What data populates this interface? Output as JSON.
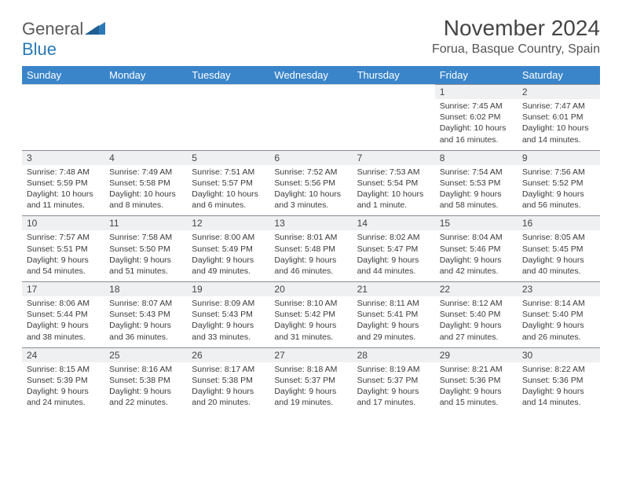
{
  "logo": {
    "part1": "General",
    "part2": "Blue"
  },
  "title": "November 2024",
  "location": "Forua, Basque Country, Spain",
  "colors": {
    "header_bg": "#3a85c9",
    "header_text": "#ffffff",
    "daynum_bg": "#eef0f2",
    "day_border": "#8a8f96",
    "body_text": "#3a3a3a",
    "logo_gray": "#5a5a5a",
    "logo_blue": "#2a7ab8"
  },
  "day_headers": [
    "Sunday",
    "Monday",
    "Tuesday",
    "Wednesday",
    "Thursday",
    "Friday",
    "Saturday"
  ],
  "weeks": [
    [
      null,
      null,
      null,
      null,
      null,
      {
        "n": "1",
        "sunrise": "7:45 AM",
        "sunset": "6:02 PM",
        "dl": "10 hours and 16 minutes."
      },
      {
        "n": "2",
        "sunrise": "7:47 AM",
        "sunset": "6:01 PM",
        "dl": "10 hours and 14 minutes."
      }
    ],
    [
      {
        "n": "3",
        "sunrise": "7:48 AM",
        "sunset": "5:59 PM",
        "dl": "10 hours and 11 minutes."
      },
      {
        "n": "4",
        "sunrise": "7:49 AM",
        "sunset": "5:58 PM",
        "dl": "10 hours and 8 minutes."
      },
      {
        "n": "5",
        "sunrise": "7:51 AM",
        "sunset": "5:57 PM",
        "dl": "10 hours and 6 minutes."
      },
      {
        "n": "6",
        "sunrise": "7:52 AM",
        "sunset": "5:56 PM",
        "dl": "10 hours and 3 minutes."
      },
      {
        "n": "7",
        "sunrise": "7:53 AM",
        "sunset": "5:54 PM",
        "dl": "10 hours and 1 minute."
      },
      {
        "n": "8",
        "sunrise": "7:54 AM",
        "sunset": "5:53 PM",
        "dl": "9 hours and 58 minutes."
      },
      {
        "n": "9",
        "sunrise": "7:56 AM",
        "sunset": "5:52 PM",
        "dl": "9 hours and 56 minutes."
      }
    ],
    [
      {
        "n": "10",
        "sunrise": "7:57 AM",
        "sunset": "5:51 PM",
        "dl": "9 hours and 54 minutes."
      },
      {
        "n": "11",
        "sunrise": "7:58 AM",
        "sunset": "5:50 PM",
        "dl": "9 hours and 51 minutes."
      },
      {
        "n": "12",
        "sunrise": "8:00 AM",
        "sunset": "5:49 PM",
        "dl": "9 hours and 49 minutes."
      },
      {
        "n": "13",
        "sunrise": "8:01 AM",
        "sunset": "5:48 PM",
        "dl": "9 hours and 46 minutes."
      },
      {
        "n": "14",
        "sunrise": "8:02 AM",
        "sunset": "5:47 PM",
        "dl": "9 hours and 44 minutes."
      },
      {
        "n": "15",
        "sunrise": "8:04 AM",
        "sunset": "5:46 PM",
        "dl": "9 hours and 42 minutes."
      },
      {
        "n": "16",
        "sunrise": "8:05 AM",
        "sunset": "5:45 PM",
        "dl": "9 hours and 40 minutes."
      }
    ],
    [
      {
        "n": "17",
        "sunrise": "8:06 AM",
        "sunset": "5:44 PM",
        "dl": "9 hours and 38 minutes."
      },
      {
        "n": "18",
        "sunrise": "8:07 AM",
        "sunset": "5:43 PM",
        "dl": "9 hours and 36 minutes."
      },
      {
        "n": "19",
        "sunrise": "8:09 AM",
        "sunset": "5:43 PM",
        "dl": "9 hours and 33 minutes."
      },
      {
        "n": "20",
        "sunrise": "8:10 AM",
        "sunset": "5:42 PM",
        "dl": "9 hours and 31 minutes."
      },
      {
        "n": "21",
        "sunrise": "8:11 AM",
        "sunset": "5:41 PM",
        "dl": "9 hours and 29 minutes."
      },
      {
        "n": "22",
        "sunrise": "8:12 AM",
        "sunset": "5:40 PM",
        "dl": "9 hours and 27 minutes."
      },
      {
        "n": "23",
        "sunrise": "8:14 AM",
        "sunset": "5:40 PM",
        "dl": "9 hours and 26 minutes."
      }
    ],
    [
      {
        "n": "24",
        "sunrise": "8:15 AM",
        "sunset": "5:39 PM",
        "dl": "9 hours and 24 minutes."
      },
      {
        "n": "25",
        "sunrise": "8:16 AM",
        "sunset": "5:38 PM",
        "dl": "9 hours and 22 minutes."
      },
      {
        "n": "26",
        "sunrise": "8:17 AM",
        "sunset": "5:38 PM",
        "dl": "9 hours and 20 minutes."
      },
      {
        "n": "27",
        "sunrise": "8:18 AM",
        "sunset": "5:37 PM",
        "dl": "9 hours and 19 minutes."
      },
      {
        "n": "28",
        "sunrise": "8:19 AM",
        "sunset": "5:37 PM",
        "dl": "9 hours and 17 minutes."
      },
      {
        "n": "29",
        "sunrise": "8:21 AM",
        "sunset": "5:36 PM",
        "dl": "9 hours and 15 minutes."
      },
      {
        "n": "30",
        "sunrise": "8:22 AM",
        "sunset": "5:36 PM",
        "dl": "9 hours and 14 minutes."
      }
    ]
  ]
}
